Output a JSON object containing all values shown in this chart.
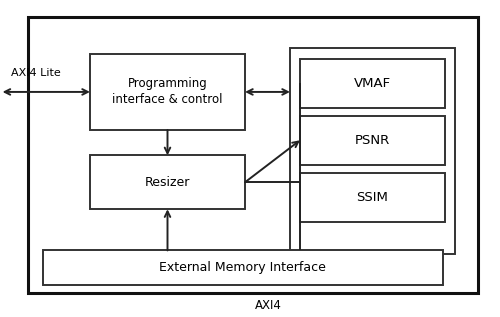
{
  "bg_color": "#ffffff",
  "box_color": "#ffffff",
  "box_edge_color": "#333333",
  "outer_edge_color": "#111111",
  "text_color": "#000000",
  "arrow_color": "#222222",
  "line_width": 1.4,
  "outer_lw": 2.2,
  "boxes_norm": {
    "outer": [
      0.055,
      0.075,
      0.9,
      0.87
    ],
    "prog_ctrl": [
      0.18,
      0.59,
      0.31,
      0.24
    ],
    "resizer": [
      0.18,
      0.34,
      0.31,
      0.17
    ],
    "metrics_group": [
      0.58,
      0.2,
      0.33,
      0.65
    ],
    "vmaf": [
      0.6,
      0.66,
      0.29,
      0.155
    ],
    "psnr": [
      0.6,
      0.48,
      0.29,
      0.155
    ],
    "ssim": [
      0.6,
      0.3,
      0.29,
      0.155
    ],
    "ext_mem": [
      0.085,
      0.1,
      0.8,
      0.11
    ]
  },
  "labels": {
    "prog_ctrl": "Programming\ninterface & control",
    "resizer": "Resizer",
    "vmaf": "VMAF",
    "psnr": "PSNR",
    "ssim": "SSIM",
    "ext_mem": "External Memory Interface",
    "axi4_lite": "AXI4 Lite",
    "axi4": "AXI4"
  },
  "fontsizes": {
    "prog_ctrl": 8.5,
    "resizer": 9.0,
    "vmaf": 9.5,
    "psnr": 9.5,
    "ssim": 9.5,
    "ext_mem": 9.0,
    "axi4_lite": 8.0,
    "axi4": 8.5
  }
}
